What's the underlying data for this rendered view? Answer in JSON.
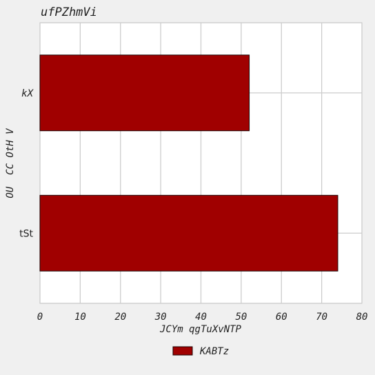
{
  "chart_data": {
    "type": "bar",
    "orientation": "horizontal",
    "title": "ufPZhmVi",
    "xlabel": "JCYm qgTuXvNTP",
    "ylabel": "OU  CC OtH V",
    "categories": [
      "kX",
      "tSt"
    ],
    "series": [
      {
        "name": "KABTz",
        "values": [
          52,
          74
        ]
      }
    ],
    "xlim": [
      0,
      80
    ],
    "xticks": [
      0,
      10,
      20,
      30,
      40,
      50,
      60,
      70,
      80
    ],
    "grid": true,
    "legend_position": "bottom-center",
    "colors": {
      "bar": "#a00000",
      "edge": "#1a0000",
      "grid": "#cccccc",
      "plot_bg": "#ffffff",
      "figure_bg": "#f0f0f0"
    }
  }
}
